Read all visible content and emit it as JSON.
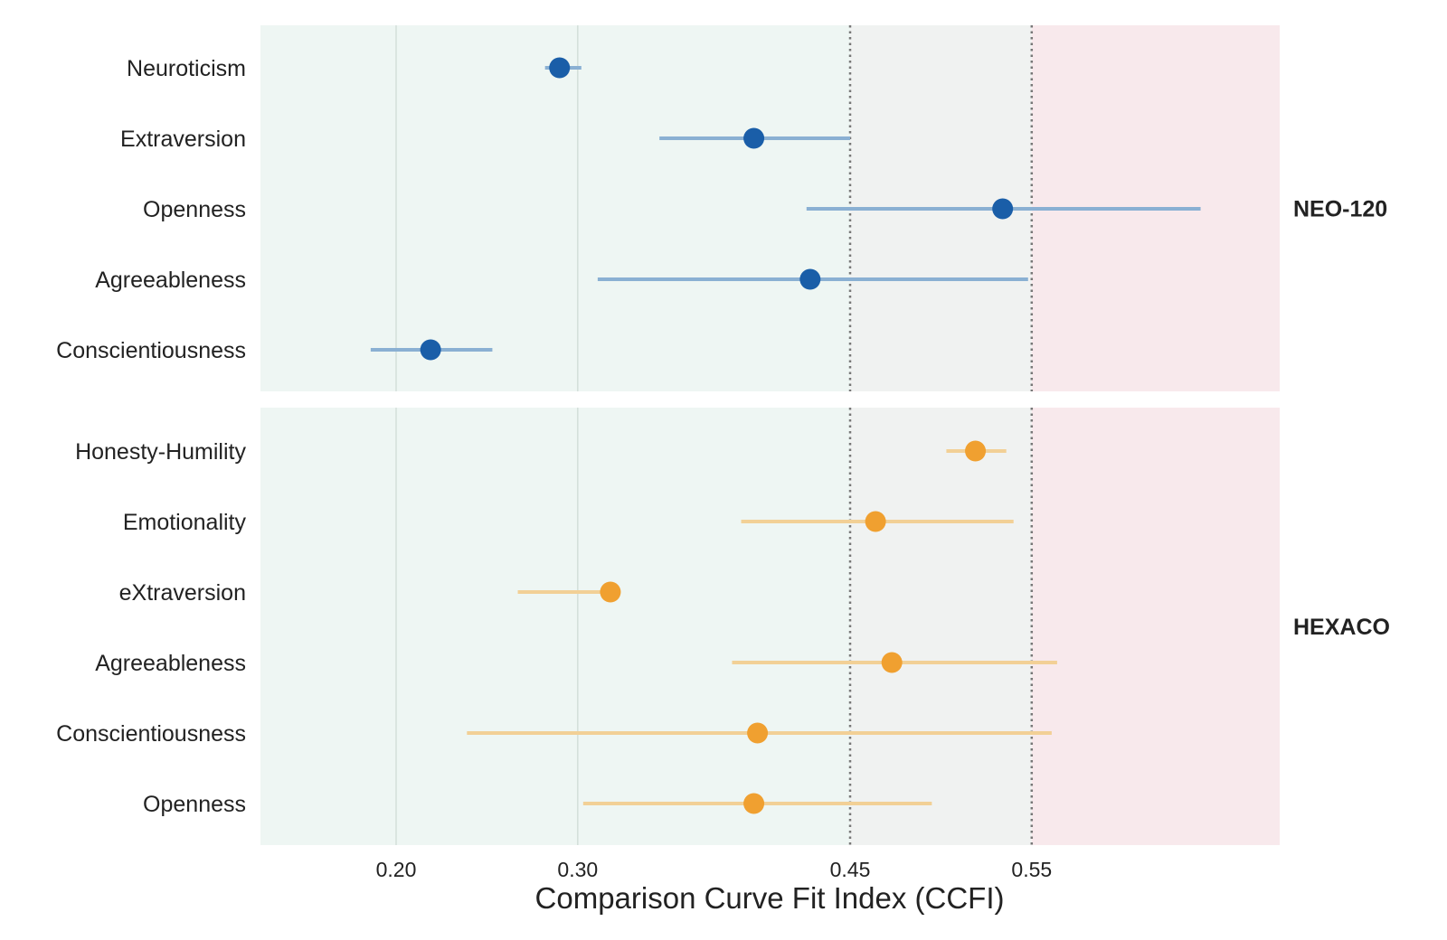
{
  "chart_data": {
    "type": "scatter",
    "subtype": "dot-and-interval",
    "xlabel": "Comparison Curve Fit Index (CCFI)",
    "xticks": [
      0.2,
      0.3,
      0.45,
      0.55
    ],
    "xtick_labels": [
      "0.20",
      "0.30",
      "0.45",
      "0.55"
    ],
    "xlim": [
      0.125,
      0.687
    ],
    "grid": "vertical",
    "thresholds": [
      0.45,
      0.55
    ],
    "background_zones": [
      {
        "from": 0.125,
        "to": 0.45,
        "color": "#eef6f3"
      },
      {
        "from": 0.45,
        "to": 0.55,
        "color": "#f0f2f1"
      },
      {
        "from": 0.55,
        "to": 0.687,
        "color": "#f8e9ec"
      }
    ],
    "panels": [
      {
        "label": "NEO-120",
        "point_color": "#1a5ea8",
        "interval_color": "#8ab0d3",
        "items": [
          {
            "label": "Neuroticism",
            "value": 0.29,
            "low": 0.282,
            "high": 0.302
          },
          {
            "label": "Extraversion",
            "value": 0.397,
            "low": 0.345,
            "high": 0.45
          },
          {
            "label": "Openness",
            "value": 0.534,
            "low": 0.426,
            "high": 0.643
          },
          {
            "label": "Agreeableness",
            "value": 0.428,
            "low": 0.311,
            "high": 0.548
          },
          {
            "label": "Conscientiousness",
            "value": 0.219,
            "low": 0.186,
            "high": 0.253
          }
        ]
      },
      {
        "label": "HEXACO",
        "point_color": "#f0a030",
        "interval_color": "#f2d096",
        "items": [
          {
            "label": "Honesty-Humility",
            "value": 0.519,
            "low": 0.503,
            "high": 0.536
          },
          {
            "label": "Emotionality",
            "value": 0.464,
            "low": 0.39,
            "high": 0.54
          },
          {
            "label": "eXtraversion",
            "value": 0.318,
            "low": 0.267,
            "high": 0.32
          },
          {
            "label": "Agreeableness",
            "value": 0.473,
            "low": 0.385,
            "high": 0.564
          },
          {
            "label": "Conscientiousness",
            "value": 0.399,
            "low": 0.239,
            "high": 0.561
          },
          {
            "label": "Openness",
            "value": 0.397,
            "low": 0.303,
            "high": 0.495
          }
        ]
      }
    ]
  }
}
